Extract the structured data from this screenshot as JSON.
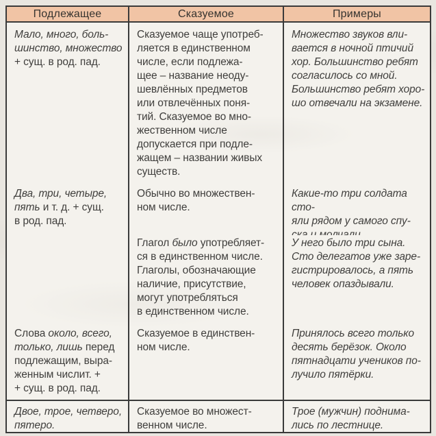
{
  "colors": {
    "page_bg": "#e9e6e0",
    "cell_bg": "#f4f2ed",
    "header_bg": "#f1c4a5",
    "border": "#3a3a3a",
    "text": "#3f3e3c"
  },
  "header": {
    "columns": [
      "Подлежащее",
      "Сказуемое",
      "Примеры"
    ]
  },
  "rows": [
    {
      "cells": [
        [
          [
            {
              "t": "Мало, много, боль-\nшинство, множество\n",
              "i": true
            },
            {
              "t": "+ сущ. в род. пад.",
              "i": false
            }
          ]
        ],
        [
          [
            {
              "t": "Сказуемое чаще употреб-\nляется в единственном\nчисле, если подлежа-\nщее – название неоду-\nшевлённых предметов\nили отвлечённых поня-\nтий. Сказуемое во мно-\nжественном числе\nдопускается при подле-\nжащем – названии живых\nсуществ.",
              "i": false
            }
          ]
        ],
        [
          [
            {
              "t": "Множество звуков вли-\nвается в ночной птичий\nхор. Большинство ребят\nсогласилось со мной.\nБольшинство ребят хоро-\nшо отвечали на экзамене.",
              "i": true
            }
          ]
        ]
      ]
    },
    {
      "cells": [
        [
          [
            {
              "t": "Два, три, четыре,\nпять ",
              "i": true
            },
            {
              "t": "и т. д. + сущ.\nв род. пад.",
              "i": false
            }
          ]
        ],
        [
          [
            {
              "t": "Обычно во множествен-\nном числе.",
              "i": false
            }
          ]
        ],
        [
          [
            {
              "t": "Какие-то три солдата сто-\nяли рядом у самого спу-\nска и молчали.",
              "i": true
            }
          ]
        ]
      ]
    },
    {
      "cells": [
        [],
        [
          [
            {
              "t": "Глагол ",
              "i": false
            },
            {
              "t": "было",
              "i": true
            },
            {
              "t": " употребляет-\nся в единственном числе.\nГлаголы, обозначающие\nналичие, присутствие,\nмогут употребляться\nв единственном числе.",
              "i": false
            }
          ]
        ],
        [
          [
            {
              "t": "У него было три сына.\nСто делегатов уже заре-\nгистрировалось, а пять\nчеловек опаздывали.",
              "i": true
            }
          ]
        ]
      ]
    },
    {
      "cells": [
        [
          [
            {
              "t": "Слова ",
              "i": false
            },
            {
              "t": "около, всего,\nтолько, лишь ",
              "i": true
            },
            {
              "t": "перед\nподлежащим, выра-\nженным числит. +\n+ сущ. в род. пад.",
              "i": false
            }
          ]
        ],
        [
          [
            {
              "t": "Сказуемое в единствен-\nном числе.",
              "i": false
            }
          ]
        ],
        [
          [
            {
              "t": "Принялось всего только\nдесять берёзок. Около\nпятнадцати учеников по-\nлучило пятёрки.",
              "i": true
            }
          ]
        ]
      ]
    },
    {
      "cells": [
        [
          [
            {
              "t": "Двое, трое, четверо,\nпятеро.",
              "i": true
            }
          ]
        ],
        [
          [
            {
              "t": "Сказуемое во множест-\nвенном числе.",
              "i": false
            }
          ]
        ],
        [
          [
            {
              "t": "Трое (мужчин) поднима-\nлись по лестнице.",
              "i": true
            }
          ]
        ]
      ]
    }
  ]
}
